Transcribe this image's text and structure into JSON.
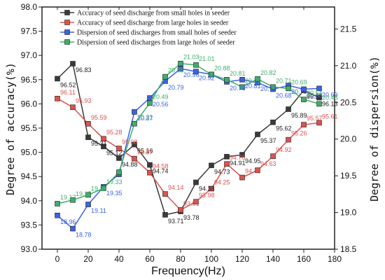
{
  "chart_data": {
    "type": "line",
    "xlabel": "Frequency(Hz)",
    "ylabel_left": "Degree of accuracy(%)",
    "ylabel_right": "Degree of dispersion(%)",
    "x": [
      0,
      10,
      20,
      30,
      40,
      50,
      60,
      70,
      80,
      90,
      100,
      110,
      120,
      130,
      140,
      150,
      160,
      170
    ],
    "xlim": [
      -10,
      180
    ],
    "xticks": [
      "0",
      "20",
      "40",
      "60",
      "80",
      "100",
      "120",
      "140",
      "160",
      "180"
    ],
    "ylim_left": [
      93.0,
      98.0
    ],
    "yticks_left": [
      "93.0",
      "93.5",
      "94.0",
      "94.5",
      "95.0",
      "95.5",
      "96.0",
      "96.5",
      "97.0",
      "97.5",
      "98.0"
    ],
    "ylim_right": [
      18.5,
      21.8
    ],
    "yticks_right": [
      "18.5",
      "19.0",
      "19.5",
      "20.0",
      "20.5",
      "21.0",
      "21.5"
    ],
    "legend_position": "top",
    "series": [
      {
        "name": "Accuracy of seed discharge from small holes in seeder",
        "axis": "left",
        "color": "#3a3a3a",
        "values": [
          96.52,
          96.83,
          95.31,
          95.12,
          94.88,
          95.16,
          94.74,
          93.71,
          93.78,
          94.38,
          94.73,
          94.91,
          94.95,
          95.37,
          95.62,
          95.89,
          96.28,
          96.13
        ],
        "labels": [
          "96.52",
          "96.83",
          "95.31",
          "95.12",
          "94.88",
          "95.16",
          "94.74",
          "93.71",
          "93.78",
          "94.38",
          "94.73",
          "94.91",
          "94.95",
          "95.37",
          "95.62",
          "95.89",
          "96.28",
          "96.13"
        ]
      },
      {
        "name": "Accuracy of seed discharge from large holes in seeder",
        "axis": "left",
        "color": "#d9534f",
        "values": [
          96.11,
          95.93,
          95.59,
          95.28,
          95.08,
          94.87,
          94.58,
          94.14,
          93.81,
          93.98,
          94.25,
          94.76,
          94.48,
          94.63,
          94.92,
          95.26,
          95.57,
          95.61
        ],
        "labels": [
          "96.11",
          "95.93",
          "95.59",
          "95.28",
          "95.08",
          "94.87",
          "94.58",
          "94.14",
          "93.81",
          "93.98",
          "94.25",
          "94.76",
          "94.48",
          "94.63",
          "94.92",
          "95.26",
          "95.57",
          "95.61"
        ]
      },
      {
        "name": "Dispersion of seed discharges from small holes of seeder",
        "axis": "right",
        "color": "#3b62e0",
        "values": [
          18.96,
          18.78,
          19.11,
          19.35,
          19.52,
          20.37,
          20.56,
          20.79,
          20.96,
          20.92,
          20.88,
          20.78,
          20.81,
          20.77,
          20.68,
          20.73,
          20.68,
          20.69
        ],
        "labels": [
          "18.96",
          "18.78",
          "19.11",
          "19.35",
          "",
          "20.37",
          "20.56",
          "20.79",
          "20.96",
          "20.92",
          "",
          "20.78",
          "20.81",
          "20.77",
          "20.68",
          "20.73",
          "20.68",
          "20.69"
        ]
      },
      {
        "name": "Dispersion of seed discharges from large holes of seeder",
        "axis": "right",
        "color": "#3fae6a",
        "values": [
          19.12,
          19.17,
          19.24,
          19.33,
          19.55,
          20.21,
          20.49,
          20.85,
          21.03,
          21.01,
          20.88,
          20.81,
          20.71,
          20.82,
          20.71,
          20.69,
          20.54,
          20.48
        ],
        "labels": [
          "19.12",
          "19.17",
          "19.24",
          "19.33",
          "",
          "20.21",
          "20.49",
          "20.85",
          "21.03",
          "21.01",
          "20.88",
          "20.81",
          "20.71",
          "20.82",
          "20.71",
          "20.69",
          "20.54",
          "20.48"
        ]
      }
    ]
  }
}
